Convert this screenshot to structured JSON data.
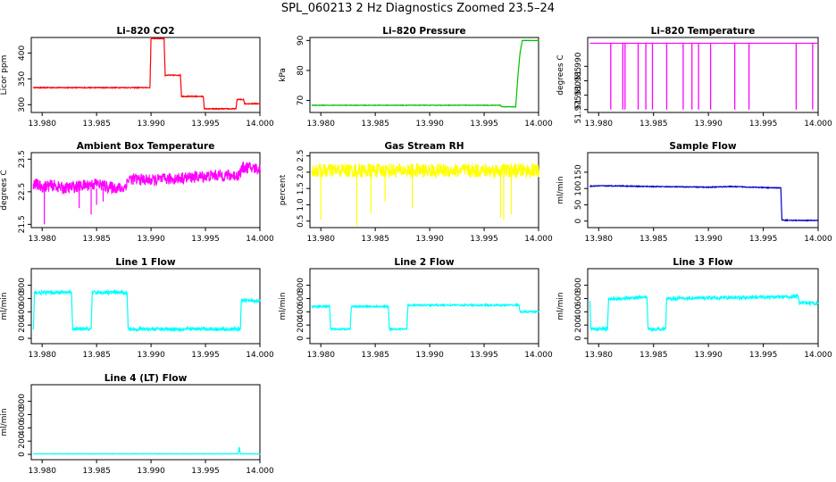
{
  "title": "SPL_060213  2 Hz Diagnostics Zoomed 23.5–24",
  "chart_data": [
    {
      "type": "line",
      "title": "Li–820 CO2",
      "ylabel": "Licor ppm",
      "color": "#ff0000",
      "xlim": [
        13.979,
        14.0
      ],
      "xticks": [
        "13.980",
        "13.985",
        "13.990",
        "13.995",
        "14.000"
      ],
      "ylim": [
        285,
        430
      ],
      "yticks": [
        "300",
        "350",
        "400"
      ],
      "x": [
        13.9792,
        13.9899,
        13.99,
        13.9912,
        13.9913,
        13.9927,
        13.9928,
        13.9948,
        13.9949,
        13.9978,
        13.9979,
        13.9985,
        13.9986,
        14.0
      ],
      "values": [
        333,
        333,
        428,
        428,
        357,
        357,
        316,
        316,
        292,
        292,
        310,
        310,
        302,
        302
      ]
    },
    {
      "type": "line",
      "title": "Li–820 Pressure",
      "ylabel": "kPa",
      "color": "#00c000",
      "xlim": [
        13.979,
        14.0
      ],
      "xticks": [
        "13.980",
        "13.985",
        "13.990",
        "13.995",
        "14.000"
      ],
      "ylim": [
        66,
        91
      ],
      "yticks": [
        "70",
        "80",
        "90"
      ],
      "x": [
        13.9792,
        13.9965,
        13.9966,
        13.9979,
        13.9981,
        13.9983,
        13.9985,
        14.0
      ],
      "values": [
        68.4,
        68.4,
        67.9,
        67.9,
        78,
        86,
        90,
        90
      ]
    },
    {
      "type": "line",
      "title": "Li–820 Temperature",
      "ylabel": "degrees C",
      "color": "#ff00ff",
      "xlim": [
        13.979,
        14.0
      ],
      "xticks": [
        "13.980",
        "13.985",
        "13.990",
        "13.995",
        "14.000"
      ],
      "ylim": [
        51.974,
        52.0
      ],
      "yticks": [
        "51.975",
        "51.980",
        "51.985",
        "51.990"
      ],
      "baseline": 51.998,
      "dip_to": 51.975,
      "dips_x": [
        13.9811,
        13.9822,
        13.9824,
        13.9836,
        13.9843,
        13.9849,
        13.9862,
        13.9877,
        13.9885,
        13.9891,
        13.9902,
        13.9924,
        13.9937,
        13.998,
        13.9995
      ]
    },
    {
      "type": "line",
      "title": "Ambient Box Temperature",
      "ylabel": "degrees C",
      "color": "#ff00ff",
      "xlim": [
        13.979,
        14.0
      ],
      "xticks": [
        "13.980",
        "13.985",
        "13.990",
        "13.995",
        "14.000"
      ],
      "ylim": [
        21.4,
        23.7
      ],
      "yticks": [
        "21.5",
        "22.5",
        "23.5"
      ],
      "x": [
        13.9792,
        13.98,
        13.981,
        13.982,
        13.983,
        13.984,
        13.985,
        13.986,
        13.9875,
        13.988,
        13.99,
        13.992,
        13.994,
        13.996,
        13.998,
        13.9985,
        14.0
      ],
      "values": [
        22.75,
        22.65,
        22.7,
        22.6,
        22.65,
        22.7,
        22.75,
        22.65,
        22.6,
        22.9,
        22.85,
        22.9,
        22.95,
        23.0,
        23.0,
        23.25,
        23.2
      ]
    },
    {
      "type": "line",
      "title": "Gas Stream RH",
      "ylabel": "percent",
      "color": "#ffff00",
      "xlim": [
        13.979,
        14.0
      ],
      "xticks": [
        "13.980",
        "13.985",
        "13.990",
        "13.995",
        "14.000"
      ],
      "ylim": [
        0.3,
        2.6
      ],
      "yticks": [
        "0.5",
        "1.0",
        "1.5",
        "2.0",
        "2.5"
      ],
      "x": [
        13.9792,
        13.985,
        13.99,
        13.995,
        14.0
      ],
      "values": [
        2.05,
        2.05,
        2.05,
        2.05,
        2.05
      ]
    },
    {
      "type": "line",
      "title": "Sample Flow",
      "ylabel": "ml/min",
      "color": "#0000c8",
      "xlim": [
        13.979,
        14.0
      ],
      "xticks": [
        "13.980",
        "13.985",
        "13.990",
        "13.995",
        "14.000"
      ],
      "ylim": [
        -20,
        210
      ],
      "yticks": [
        "0",
        "50",
        "100",
        "150"
      ],
      "x": [
        13.9792,
        13.98,
        13.982,
        13.983,
        13.985,
        13.99,
        13.992,
        13.994,
        13.996,
        13.9966,
        13.9967,
        13.998,
        14.0
      ],
      "values": [
        107,
        108,
        108,
        107,
        106,
        104,
        106,
        104,
        102,
        102,
        3,
        2,
        2
      ]
    },
    {
      "type": "line",
      "title": "Line 1 Flow",
      "ylabel": "ml/min",
      "color": "#00ffff",
      "xlim": [
        13.979,
        14.0
      ],
      "xticks": [
        "13.980",
        "13.985",
        "13.990",
        "13.995",
        "14.000"
      ],
      "ylim": [
        -80,
        1050
      ],
      "yticks": [
        "0",
        "200",
        "400",
        "600",
        "800"
      ],
      "x": [
        13.9792,
        13.9793,
        13.9827,
        13.9828,
        13.9845,
        13.9846,
        13.9878,
        13.9879,
        13.9982,
        13.9983,
        14.0
      ],
      "values": [
        140,
        690,
        690,
        140,
        140,
        690,
        690,
        140,
        140,
        570,
        570
      ]
    },
    {
      "type": "line",
      "title": "Line 2 Flow",
      "ylabel": "ml/min",
      "color": "#00ffff",
      "xlim": [
        13.979,
        14.0
      ],
      "xticks": [
        "13.980",
        "13.985",
        "13.990",
        "13.995",
        "14.000"
      ],
      "ylim": [
        -80,
        1050
      ],
      "yticks": [
        "0",
        "200",
        "400",
        "600",
        "800"
      ],
      "x": [
        13.9792,
        13.9808,
        13.9809,
        13.9827,
        13.9828,
        13.9862,
        13.9863,
        13.9879,
        13.988,
        13.9982,
        13.9983,
        14.0
      ],
      "values": [
        480,
        480,
        140,
        140,
        480,
        480,
        140,
        140,
        500,
        500,
        400,
        400
      ]
    },
    {
      "type": "line",
      "title": "Line 3 Flow",
      "ylabel": "ml/min",
      "color": "#00ffff",
      "xlim": [
        13.979,
        14.0
      ],
      "xticks": [
        "13.980",
        "13.985",
        "13.990",
        "13.995",
        "14.000"
      ],
      "ylim": [
        -80,
        1050
      ],
      "yticks": [
        "0",
        "200",
        "400",
        "600",
        "800"
      ],
      "x": [
        13.9792,
        13.9793,
        13.9794,
        13.9808,
        13.9809,
        13.9844,
        13.9845,
        13.9861,
        13.9862,
        13.9982,
        13.9983,
        14.0
      ],
      "values": [
        560,
        140,
        140,
        140,
        590,
        620,
        140,
        140,
        600,
        630,
        530,
        530
      ]
    },
    {
      "type": "line",
      "title": "Line 4 (LT) Flow",
      "ylabel": "ml/min",
      "color": "#00ffff",
      "xlim": [
        13.979,
        14.0
      ],
      "xticks": [
        "13.980",
        "13.985",
        "13.990",
        "13.995",
        "14.000"
      ],
      "ylim": [
        -80,
        1050
      ],
      "yticks": [
        "0",
        "200",
        "400",
        "600",
        "800"
      ],
      "x": [
        13.9792,
        13.998,
        13.9981,
        13.9982,
        13.9983,
        14.0
      ],
      "values": [
        8,
        8,
        110,
        8,
        8,
        8
      ]
    }
  ]
}
